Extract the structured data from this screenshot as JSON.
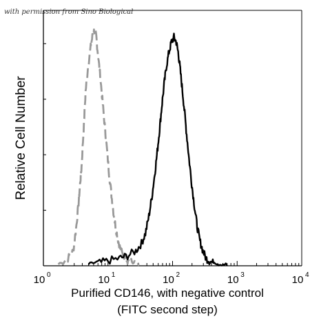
{
  "watermark": "with permission from Sino Biological",
  "chart_data": {
    "type": "line",
    "xscale": "log",
    "xlim": [
      1,
      10000
    ],
    "ylim": [
      0,
      100
    ],
    "ylabel": "Relative Cell Number",
    "xlabel_lines": [
      "Purified  CD146, with negative control",
      "(FITC second step)"
    ],
    "x_ticks": [
      {
        "base": "10",
        "exp": "0",
        "value": 1
      },
      {
        "base": "10",
        "exp": "1",
        "value": 10
      },
      {
        "base": "10",
        "exp": "2",
        "value": 100
      },
      {
        "base": "10",
        "exp": "3",
        "value": 1000
      },
      {
        "base": "10",
        "exp": "4",
        "value": 10000
      }
    ],
    "grid": false,
    "legend": "none",
    "series": [
      {
        "role": "negative control",
        "color": "#999999",
        "dash": "dashed",
        "points": [
          [
            1.7,
            0
          ],
          [
            2.4,
            3
          ],
          [
            2.9,
            6
          ],
          [
            3.2,
            15
          ],
          [
            3.5,
            25
          ],
          [
            3.7,
            33
          ],
          [
            3.9,
            40
          ],
          [
            4.2,
            55
          ],
          [
            4.5,
            70
          ],
          [
            4.9,
            80
          ],
          [
            5.4,
            88
          ],
          [
            5.8,
            93
          ],
          [
            6.2,
            95
          ],
          [
            6.6,
            92
          ],
          [
            7.0,
            85
          ],
          [
            7.6,
            76
          ],
          [
            8.3,
            65
          ],
          [
            9.0,
            55
          ],
          [
            9.7,
            46
          ],
          [
            10.5,
            36
          ],
          [
            11.5,
            27
          ],
          [
            12.5,
            19
          ],
          [
            13.7,
            13
          ],
          [
            15.0,
            8
          ],
          [
            16.5,
            5
          ],
          [
            18.5,
            3
          ],
          [
            21.0,
            2
          ],
          [
            25.0,
            1
          ],
          [
            30.0,
            0
          ]
        ]
      },
      {
        "role": "CD146",
        "color": "#000000",
        "dash": "solid",
        "points": [
          [
            5.0,
            0
          ],
          [
            7.0,
            1
          ],
          [
            10.0,
            2
          ],
          [
            15.0,
            3
          ],
          [
            20.0,
            4
          ],
          [
            27.0,
            6
          ],
          [
            33.0,
            9
          ],
          [
            38.0,
            13
          ],
          [
            43.0,
            20
          ],
          [
            48.0,
            28
          ],
          [
            53.0,
            37
          ],
          [
            58.0,
            46
          ],
          [
            63.0,
            55
          ],
          [
            68.0,
            64
          ],
          [
            74.0,
            73
          ],
          [
            80.0,
            80
          ],
          [
            88.0,
            86
          ],
          [
            96.0,
            90
          ],
          [
            105.0,
            92
          ],
          [
            114.0,
            90
          ],
          [
            122.0,
            86
          ],
          [
            130.0,
            80
          ],
          [
            140.0,
            72
          ],
          [
            152.0,
            63
          ],
          [
            165.0,
            53
          ],
          [
            180.0,
            43
          ],
          [
            198.0,
            33
          ],
          [
            218.0,
            24
          ],
          [
            240.0,
            16
          ],
          [
            265.0,
            10
          ],
          [
            295.0,
            6
          ],
          [
            330.0,
            3
          ],
          [
            370.0,
            2
          ],
          [
            430.0,
            1
          ],
          [
            520.0,
            0
          ],
          [
            700.0,
            0
          ]
        ]
      }
    ]
  }
}
